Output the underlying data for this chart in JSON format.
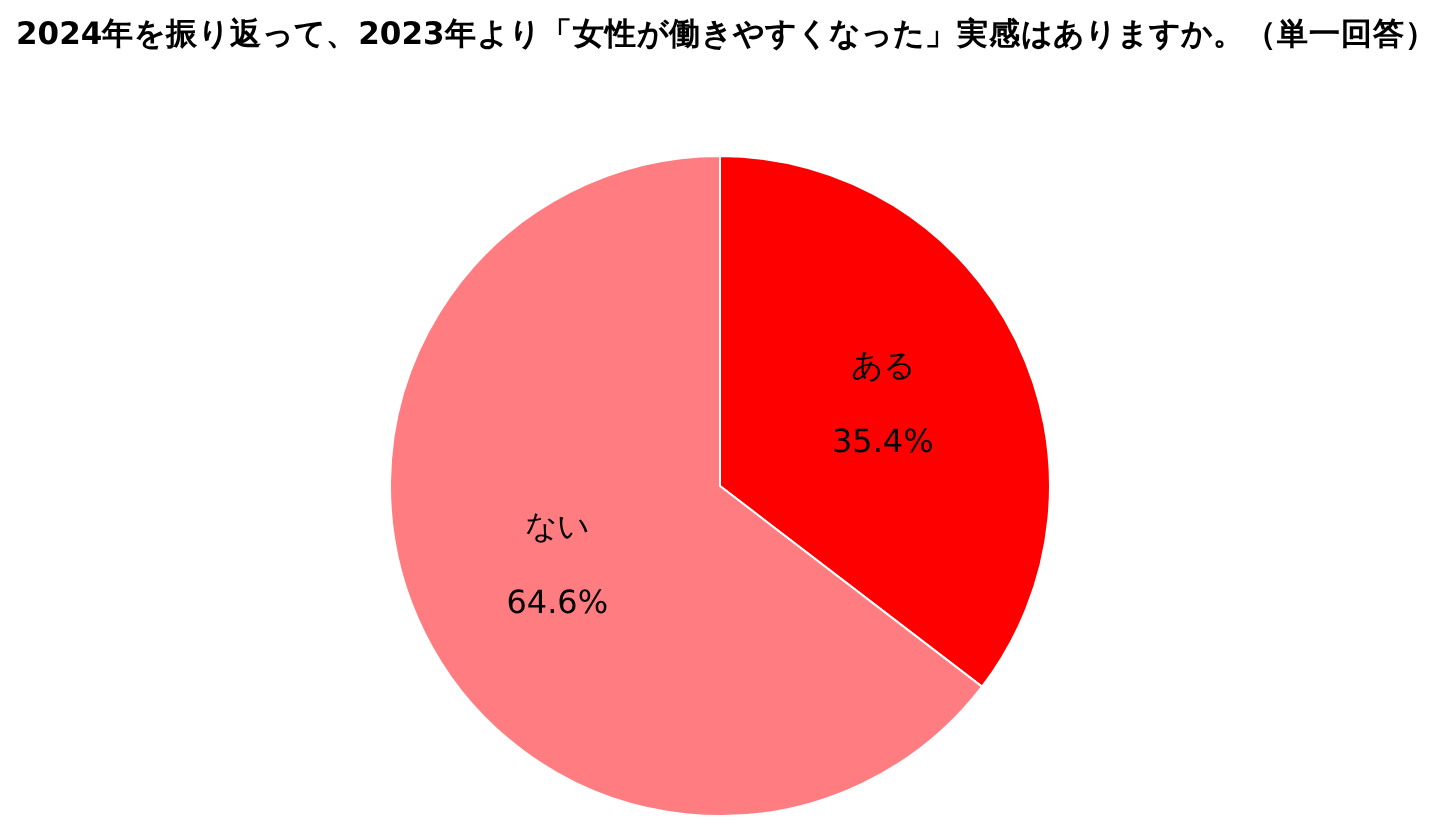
{
  "chart_data": {
    "type": "pie",
    "title": "2024年を振り返って、2023年より「女性が働きやすくなった」実感はありますか。（単一回答）",
    "categories": [
      "ある",
      "ない"
    ],
    "values": [
      35.4,
      64.6
    ],
    "colors": [
      "#ff0000",
      "#ff7c80"
    ],
    "value_labels": [
      "35.4%",
      "64.6%"
    ]
  }
}
